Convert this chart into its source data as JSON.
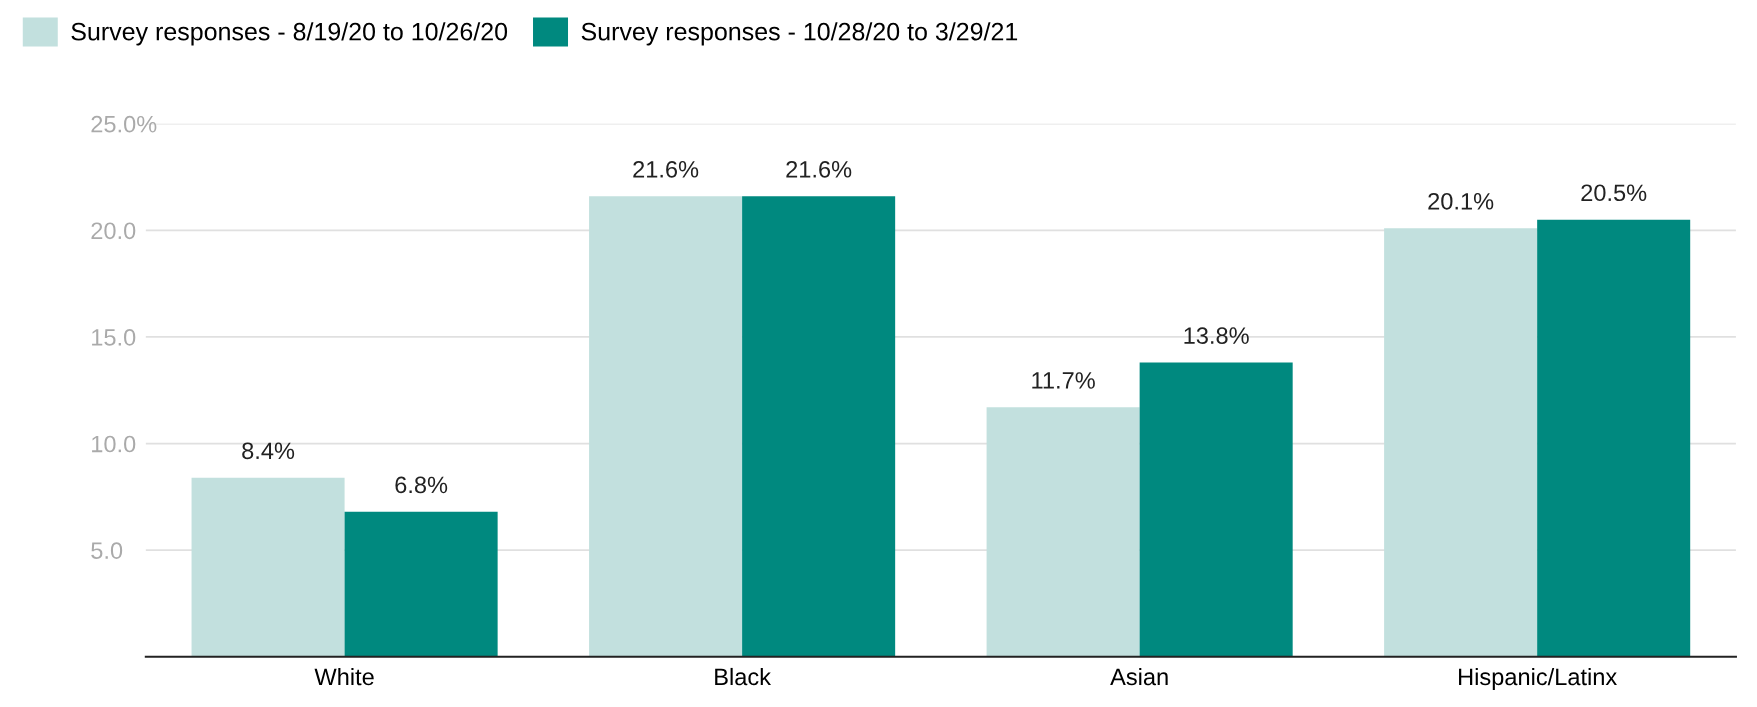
{
  "chart_data": {
    "type": "bar",
    "categories": [
      "White",
      "Black",
      "Asian",
      "Hispanic/Latinx"
    ],
    "series": [
      {
        "name": "Survey responses - 8/19/20 to 10/26/20",
        "color": "#c2e0de",
        "values": [
          8.4,
          21.6,
          11.7,
          20.1
        ],
        "value_labels": [
          "8.4%",
          "21.6%",
          "11.7%",
          "20.1%"
        ]
      },
      {
        "name": "Survey responses - 10/28/20 to 3/29/21",
        "color": "#00897f",
        "values": [
          6.8,
          21.6,
          13.8,
          20.5
        ],
        "value_labels": [
          "6.8%",
          "21.6%",
          "13.8%",
          "20.5%"
        ]
      }
    ],
    "ylim": [
      0,
      25
    ],
    "yticks": [
      {
        "value": 5,
        "label": "5.0"
      },
      {
        "value": 10,
        "label": "10.0"
      },
      {
        "value": 15,
        "label": "15.0"
      },
      {
        "value": 20,
        "label": "20.0"
      },
      {
        "value": 25,
        "label": "25.0%"
      }
    ],
    "grid": "y",
    "legend": "top left"
  }
}
